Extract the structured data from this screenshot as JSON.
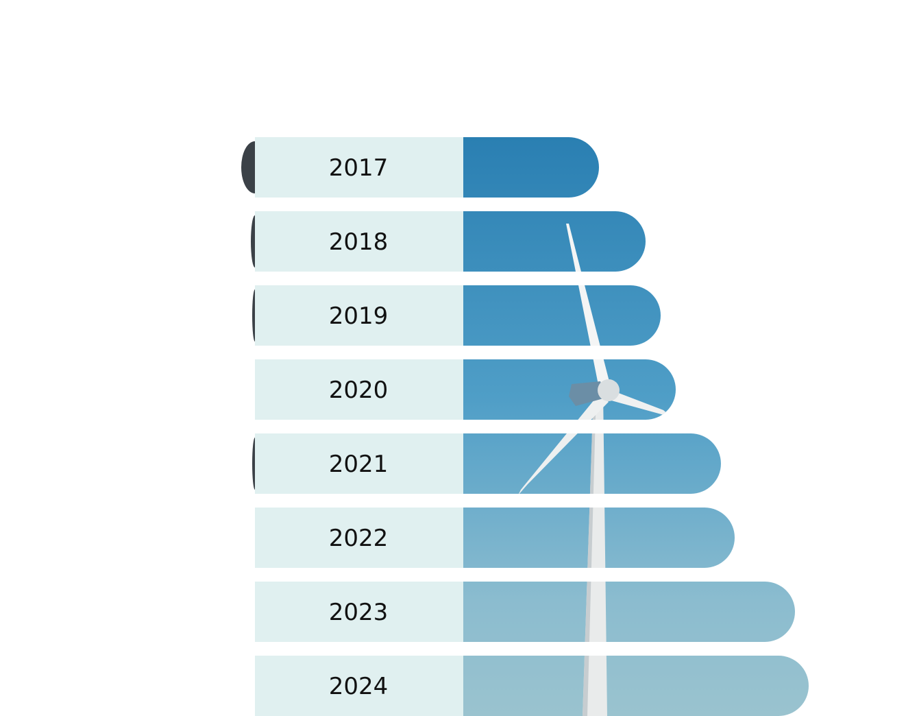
{
  "chart_data": {
    "type": "bar",
    "orientation": "horizontal",
    "categories": [
      "2017",
      "2018",
      "2019",
      "2020",
      "2021",
      "2022",
      "2023",
      "2024"
    ],
    "series": [
      {
        "values": [
          1.98,
          2.66,
          2.88,
          3.1,
          3.76,
          3.96,
          4.84,
          5.04
        ]
      }
    ],
    "title": "",
    "xlabel": "",
    "ylabel": "",
    "xlim": [
      0,
      5.04
    ],
    "grid": false,
    "legend": "none",
    "colors": {
      "label_cell": "#e0f0f0",
      "bar_top": "#2a7fb2",
      "bar_bottom": "#95bfcd",
      "text": "#111111"
    },
    "image": "wind-turbine-photo"
  }
}
